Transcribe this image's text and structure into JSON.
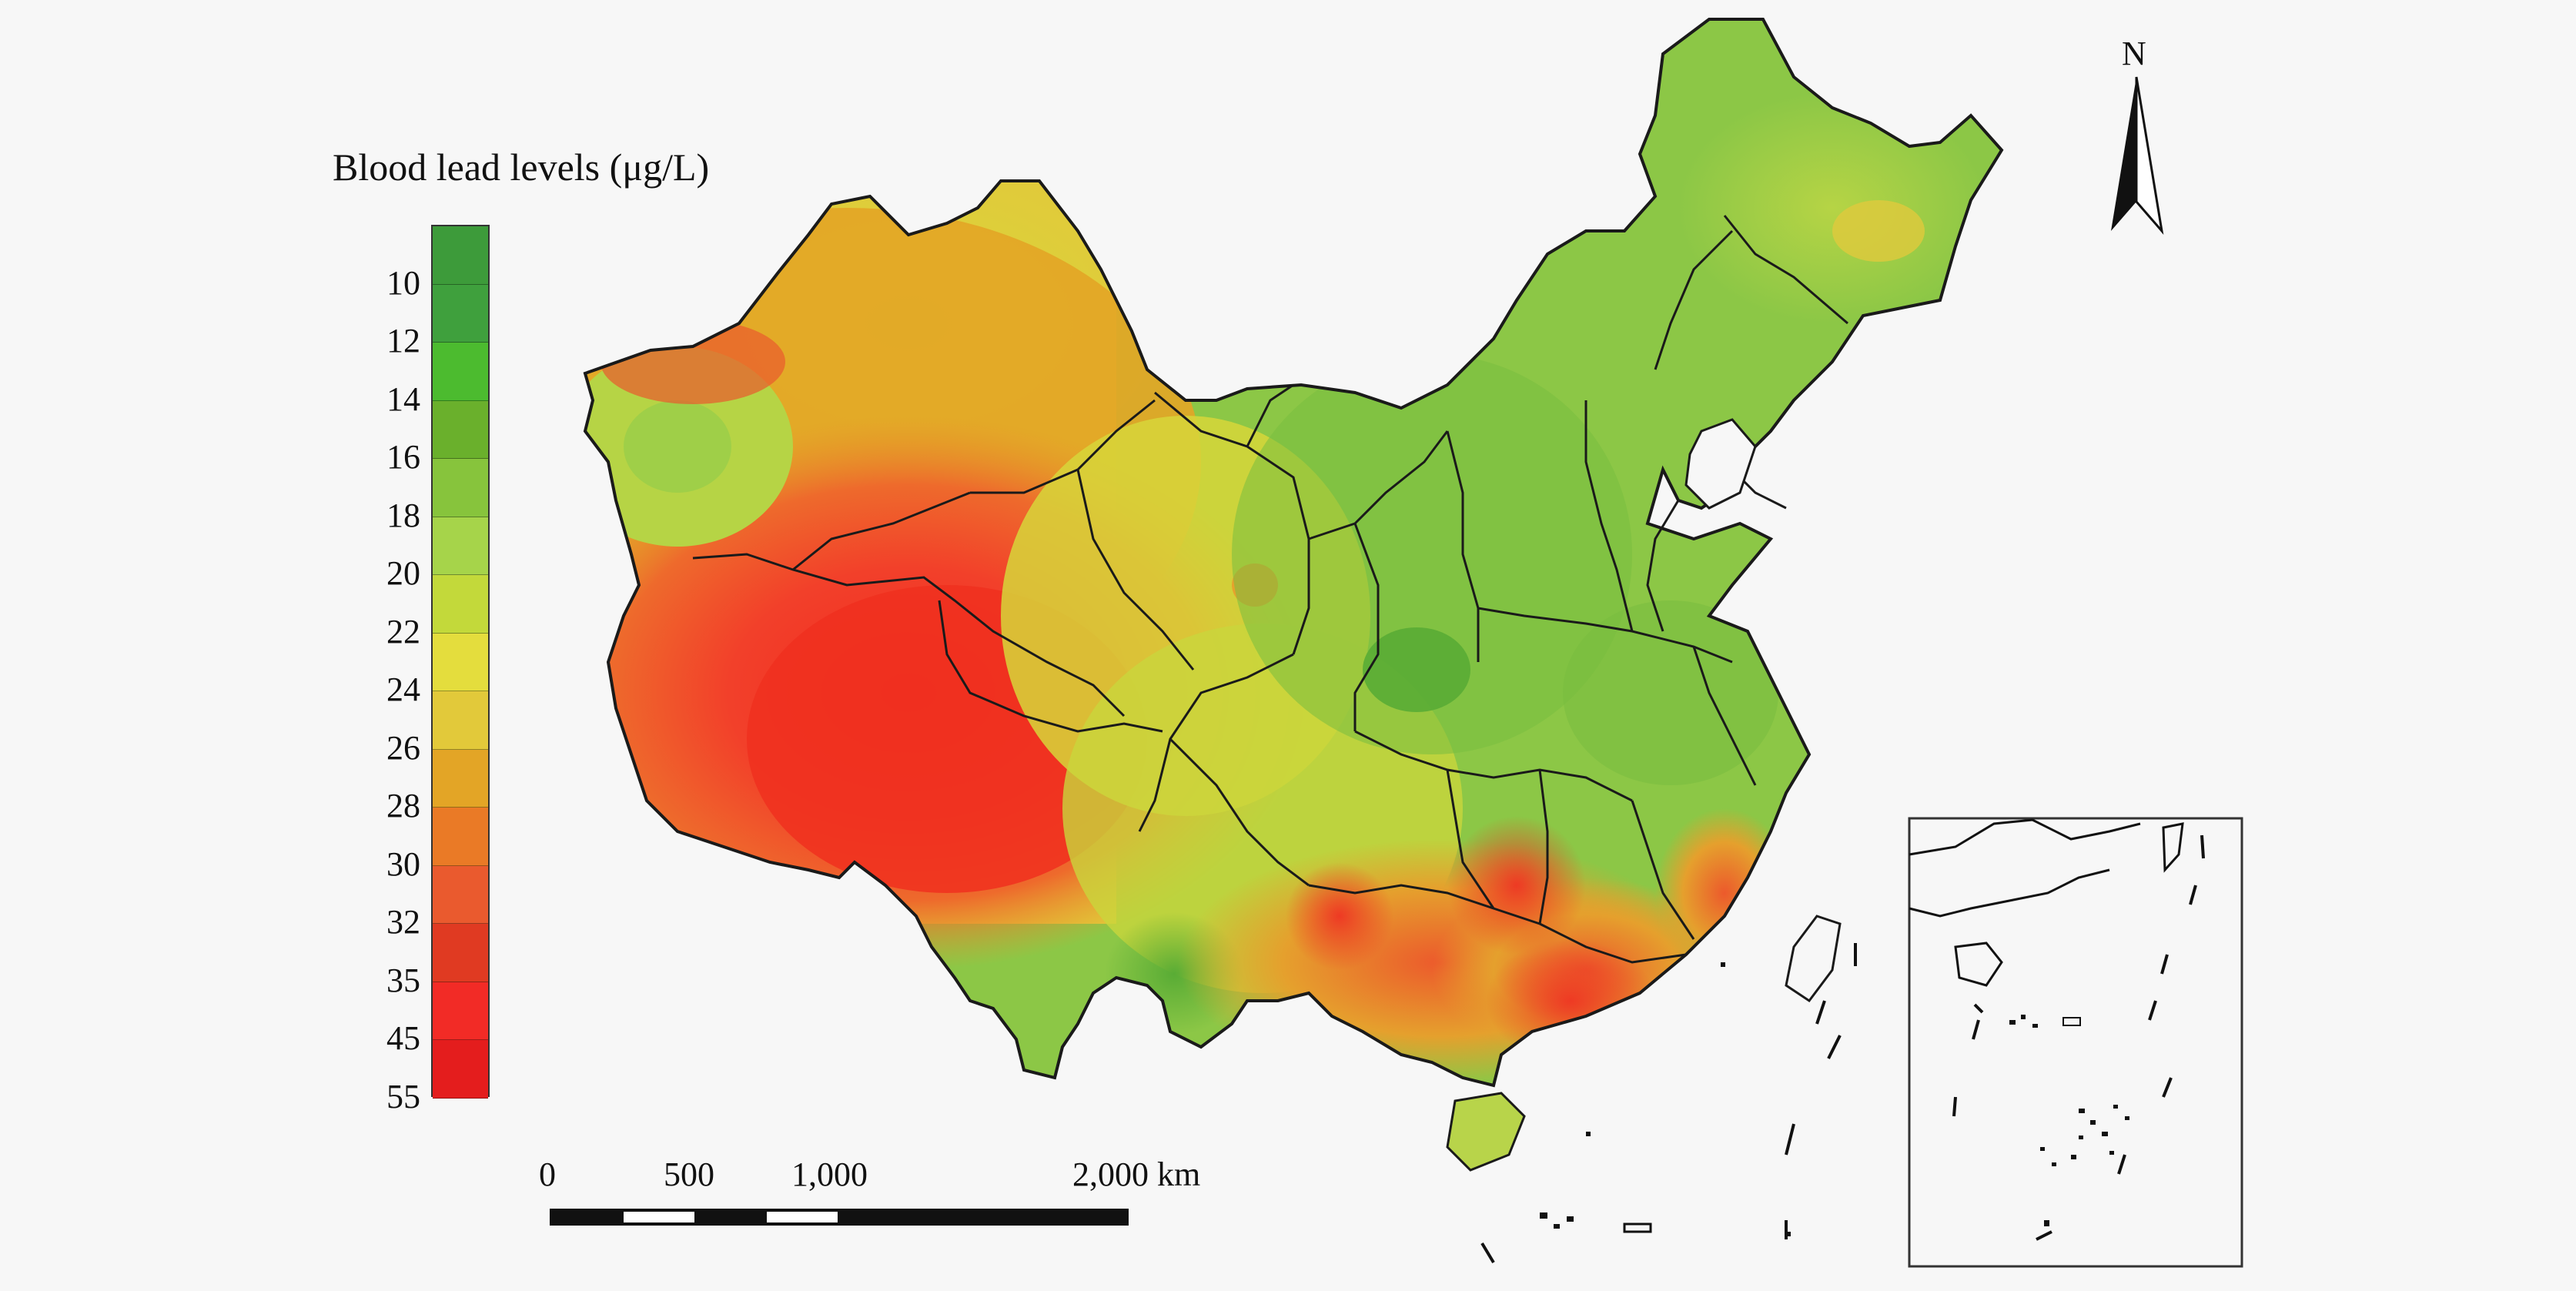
{
  "legend": {
    "title": "Blood lead levels (μg/L)",
    "ticks": [
      "10",
      "12",
      "14",
      "16",
      "18",
      "20",
      "22",
      "24",
      "26",
      "28",
      "30",
      "32",
      "35",
      "45",
      "55"
    ],
    "colors": [
      "#3d9b3a",
      "#3fa03d",
      "#4cbb2f",
      "#6ab02c",
      "#87c43c",
      "#a6d44a",
      "#c3d93a",
      "#e4dd3d",
      "#e2c93a",
      "#e3a526",
      "#ea7a26",
      "#ea5a2e",
      "#e03a22",
      "#f22b26",
      "#e41d1d"
    ]
  },
  "scale_bar": {
    "labels": [
      "0",
      "500",
      "1,000",
      "2,000 km"
    ]
  },
  "north_arrow": {
    "label": "N"
  },
  "map": {
    "low_color": "#7cc03e",
    "high_color": "#f03a24",
    "boundary_color": "#1a1a1a"
  }
}
